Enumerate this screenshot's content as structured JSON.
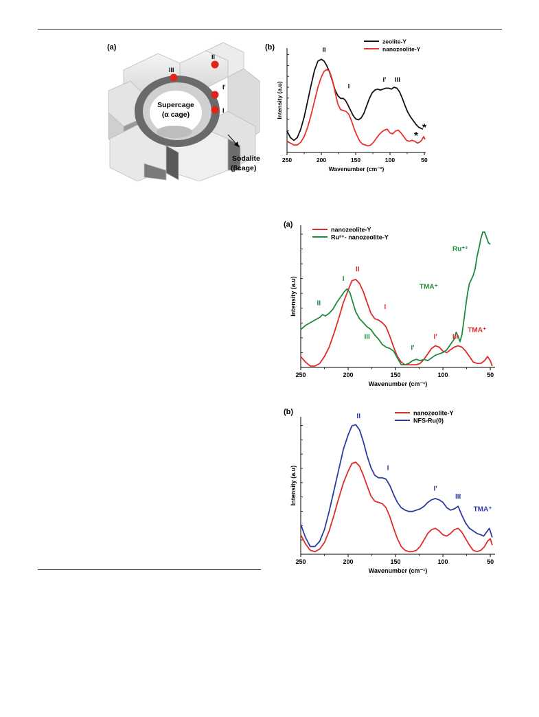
{
  "figure_top": {
    "panel_a": {
      "label": "(a)",
      "supercage_label": "Supercage",
      "supercage_sub": "(α cage)",
      "sodalite_label": "Sodalite",
      "sodalite_sub": "(βcage)",
      "sites": [
        "II",
        "III",
        "I'",
        "I"
      ]
    }
  },
  "chart_data": [
    {
      "panel": "(b)",
      "type": "line",
      "xlabel": "Wavenumber (cm⁻¹)",
      "ylabel": "Intensity (a.u)",
      "xlim": [
        250,
        48
      ],
      "xticks": [
        250,
        200,
        150,
        100,
        50
      ],
      "legend": "top-right",
      "series": [
        {
          "name": "zeolite-Y",
          "color": "#111111",
          "x": [
            250,
            245,
            240,
            235,
            230,
            225,
            220,
            215,
            210,
            205,
            200,
            196,
            192,
            188,
            184,
            180,
            176,
            172,
            168,
            165,
            162,
            158,
            154,
            150,
            146,
            142,
            138,
            134,
            130,
            126,
            122,
            118,
            114,
            110,
            106,
            102,
            98,
            94,
            90,
            86,
            82,
            78,
            74,
            70,
            66,
            62,
            58,
            55,
            52
          ],
          "y": [
            0.23,
            0.16,
            0.13,
            0.16,
            0.25,
            0.38,
            0.55,
            0.72,
            0.88,
            0.98,
            1.0,
            0.98,
            0.93,
            0.86,
            0.77,
            0.67,
            0.61,
            0.58,
            0.58,
            0.56,
            0.52,
            0.46,
            0.4,
            0.36,
            0.35,
            0.37,
            0.42,
            0.5,
            0.58,
            0.64,
            0.67,
            0.68,
            0.67,
            0.68,
            0.69,
            0.69,
            0.68,
            0.7,
            0.69,
            0.65,
            0.58,
            0.5,
            0.43,
            0.38,
            0.34,
            0.3,
            0.27,
            0.26,
            0.25
          ]
        },
        {
          "name": "nanozeolite-Y",
          "color": "#e8302c",
          "x": [
            250,
            245,
            240,
            235,
            230,
            225,
            220,
            215,
            210,
            205,
            200,
            196,
            192,
            188,
            184,
            180,
            176,
            172,
            168,
            164,
            160,
            156,
            152,
            148,
            144,
            140,
            136,
            132,
            128,
            124,
            120,
            116,
            112,
            108,
            104,
            100,
            96,
            92,
            88,
            84,
            80,
            76,
            72,
            68,
            64,
            60,
            57,
            54,
            51,
            49
          ],
          "y": [
            0.12,
            0.1,
            0.08,
            0.08,
            0.11,
            0.17,
            0.27,
            0.4,
            0.55,
            0.7,
            0.81,
            0.87,
            0.89,
            0.87,
            0.78,
            0.65,
            0.52,
            0.46,
            0.45,
            0.44,
            0.41,
            0.34,
            0.25,
            0.18,
            0.12,
            0.09,
            0.08,
            0.07,
            0.08,
            0.11,
            0.15,
            0.19,
            0.22,
            0.24,
            0.25,
            0.21,
            0.2,
            0.23,
            0.24,
            0.21,
            0.17,
            0.13,
            0.12,
            0.13,
            0.12,
            0.1,
            0.11,
            0.13,
            0.17,
            0.14
          ]
        }
      ],
      "annotations": [
        {
          "text": "II",
          "x": 196,
          "y": 1.08,
          "color": "#111111"
        },
        {
          "text": "I",
          "x": 160,
          "y": 0.69,
          "color": "#111111"
        },
        {
          "text": "I'",
          "x": 108,
          "y": 0.76,
          "color": "#111111"
        },
        {
          "text": "III",
          "x": 89,
          "y": 0.76,
          "color": "#111111"
        },
        {
          "text": "*",
          "x": 62,
          "y": 0.14,
          "color": "#111111"
        },
        {
          "text": "*",
          "x": 50,
          "y": 0.23,
          "color": "#111111"
        }
      ]
    },
    {
      "panel": "(a)",
      "type": "line",
      "xlabel": "Wavenumber (cm⁻¹)",
      "ylabel": "Intensity (a.u)",
      "xlim": [
        250,
        45
      ],
      "xticks": [
        250,
        200,
        150,
        100,
        50
      ],
      "legend": "top-left",
      "series": [
        {
          "name": "nanozeolite-Y",
          "color": "#e02a2a",
          "x": [
            250,
            245,
            240,
            235,
            230,
            225,
            220,
            215,
            210,
            205,
            200,
            196,
            192,
            188,
            184,
            180,
            176,
            172,
            168,
            164,
            160,
            156,
            152,
            148,
            144,
            140,
            136,
            132,
            128,
            124,
            120,
            116,
            112,
            108,
            104,
            100,
            96,
            92,
            88,
            84,
            80,
            76,
            72,
            68,
            64,
            60,
            56,
            53,
            50,
            48
          ],
          "y": [
            0.08,
            0.04,
            0.01,
            0.01,
            0.03,
            0.08,
            0.15,
            0.25,
            0.36,
            0.48,
            0.57,
            0.64,
            0.65,
            0.62,
            0.56,
            0.48,
            0.4,
            0.36,
            0.35,
            0.33,
            0.3,
            0.23,
            0.15,
            0.08,
            0.04,
            0.02,
            0.02,
            0.02,
            0.02,
            0.03,
            0.06,
            0.1,
            0.14,
            0.16,
            0.15,
            0.12,
            0.11,
            0.13,
            0.15,
            0.16,
            0.15,
            0.12,
            0.08,
            0.04,
            0.03,
            0.03,
            0.05,
            0.08,
            0.05,
            0.01
          ]
        },
        {
          "name": "Ru³⁺- nanozeolite-Y",
          "color": "#1e8a3c",
          "x": [
            250,
            245,
            240,
            235,
            230,
            227,
            224,
            220,
            216,
            212,
            208,
            204,
            201,
            198,
            195,
            192,
            188,
            184,
            180,
            176,
            172,
            168,
            164,
            160,
            156,
            152,
            148,
            144,
            140,
            136,
            132,
            128,
            124,
            120,
            116,
            112,
            108,
            104,
            100,
            96,
            92,
            88,
            86,
            84,
            82,
            80,
            78,
            76,
            74,
            72,
            70,
            68,
            66,
            64,
            62,
            60,
            58,
            56,
            54,
            52,
            50
          ],
          "y": [
            0.28,
            0.31,
            0.33,
            0.35,
            0.37,
            0.39,
            0.38,
            0.4,
            0.43,
            0.48,
            0.52,
            0.56,
            0.58,
            0.55,
            0.48,
            0.41,
            0.36,
            0.33,
            0.3,
            0.28,
            0.24,
            0.21,
            0.17,
            0.15,
            0.14,
            0.12,
            0.07,
            0.02,
            0.02,
            0.03,
            0.05,
            0.06,
            0.05,
            0.06,
            0.05,
            0.07,
            0.09,
            0.1,
            0.11,
            0.13,
            0.17,
            0.21,
            0.26,
            0.23,
            0.19,
            0.24,
            0.34,
            0.45,
            0.55,
            0.62,
            0.65,
            0.68,
            0.73,
            0.82,
            0.88,
            0.95,
            1.0,
            1.0,
            0.96,
            0.92,
            0.91
          ]
        }
      ],
      "annotations": [
        {
          "text": "II",
          "x": 190,
          "y": 0.71,
          "color": "#e02a2a"
        },
        {
          "text": "I",
          "x": 161,
          "y": 0.43,
          "color": "#e02a2a"
        },
        {
          "text": "I'",
          "x": 108,
          "y": 0.21,
          "color": "#e02a2a"
        },
        {
          "text": "III",
          "x": 87,
          "y": 0.21,
          "color": "#e02a2a"
        },
        {
          "text": "TMA⁺",
          "x": 64,
          "y": 0.26,
          "color": "#e02a2a"
        },
        {
          "text": "II",
          "x": 231,
          "y": 0.46,
          "color": "#1e8a3c"
        },
        {
          "text": "I",
          "x": 205,
          "y": 0.64,
          "color": "#1e8a3c"
        },
        {
          "text": "III",
          "x": 180,
          "y": 0.21,
          "color": "#1e8a3c"
        },
        {
          "text": "I'",
          "x": 132,
          "y": 0.13,
          "color": "#1e8a3c"
        },
        {
          "text": "TMA⁺",
          "x": 115,
          "y": 0.58,
          "color": "#1e8a3c"
        },
        {
          "text": "Ru⁺³",
          "x": 82,
          "y": 0.86,
          "color": "#1e8a3c"
        }
      ]
    },
    {
      "panel": "(b)",
      "type": "line",
      "xlabel": "Wavenumber (cm⁻¹)",
      "ylabel": "Intensity (a.u)",
      "xlim": [
        250,
        45
      ],
      "xticks": [
        250,
        200,
        150,
        100,
        50
      ],
      "legend": "top-right",
      "series": [
        {
          "name": "nanozeolite-Y",
          "color": "#e02a2a",
          "x": [
            250,
            245,
            240,
            235,
            230,
            225,
            220,
            215,
            210,
            205,
            200,
            196,
            192,
            188,
            184,
            180,
            176,
            172,
            168,
            164,
            160,
            156,
            152,
            148,
            144,
            140,
            136,
            132,
            128,
            124,
            120,
            116,
            112,
            108,
            104,
            100,
            96,
            92,
            88,
            84,
            80,
            76,
            72,
            68,
            64,
            60,
            56,
            53,
            50,
            48
          ],
          "y": [
            0.15,
            0.08,
            0.03,
            0.02,
            0.04,
            0.09,
            0.18,
            0.3,
            0.43,
            0.55,
            0.64,
            0.7,
            0.71,
            0.68,
            0.61,
            0.53,
            0.45,
            0.41,
            0.4,
            0.39,
            0.36,
            0.29,
            0.2,
            0.12,
            0.06,
            0.03,
            0.02,
            0.02,
            0.03,
            0.06,
            0.11,
            0.16,
            0.19,
            0.2,
            0.18,
            0.15,
            0.14,
            0.16,
            0.19,
            0.2,
            0.17,
            0.12,
            0.07,
            0.03,
            0.02,
            0.03,
            0.06,
            0.1,
            0.12,
            0.07
          ]
        },
        {
          "name": "NFS-Ru(0)",
          "color": "#2b3aa0",
          "x": [
            250,
            245,
            240,
            235,
            230,
            225,
            220,
            215,
            210,
            205,
            200,
            196,
            192,
            188,
            184,
            180,
            176,
            172,
            168,
            164,
            160,
            156,
            152,
            148,
            144,
            140,
            136,
            132,
            128,
            124,
            120,
            116,
            112,
            108,
            104,
            100,
            96,
            92,
            88,
            84,
            80,
            76,
            72,
            68,
            64,
            60,
            57,
            54,
            51,
            48
          ],
          "y": [
            0.23,
            0.13,
            0.06,
            0.06,
            0.1,
            0.19,
            0.33,
            0.49,
            0.65,
            0.81,
            0.92,
            0.99,
            1.0,
            0.96,
            0.87,
            0.76,
            0.67,
            0.61,
            0.59,
            0.59,
            0.58,
            0.53,
            0.46,
            0.4,
            0.36,
            0.34,
            0.33,
            0.33,
            0.34,
            0.35,
            0.37,
            0.4,
            0.42,
            0.43,
            0.42,
            0.4,
            0.36,
            0.34,
            0.35,
            0.37,
            0.3,
            0.24,
            0.2,
            0.18,
            0.16,
            0.15,
            0.14,
            0.17,
            0.2,
            0.13
          ]
        }
      ],
      "annotations": [
        {
          "text": "II",
          "x": 189,
          "y": 1.05,
          "color": "#2b3aa0"
        },
        {
          "text": "I",
          "x": 158,
          "y": 0.65,
          "color": "#2b3aa0"
        },
        {
          "text": "I'",
          "x": 108,
          "y": 0.49,
          "color": "#2b3aa0"
        },
        {
          "text": "III",
          "x": 84,
          "y": 0.43,
          "color": "#2b3aa0"
        },
        {
          "text": "TMA⁺",
          "x": 58,
          "y": 0.33,
          "color": "#2b3aa0"
        }
      ]
    }
  ]
}
